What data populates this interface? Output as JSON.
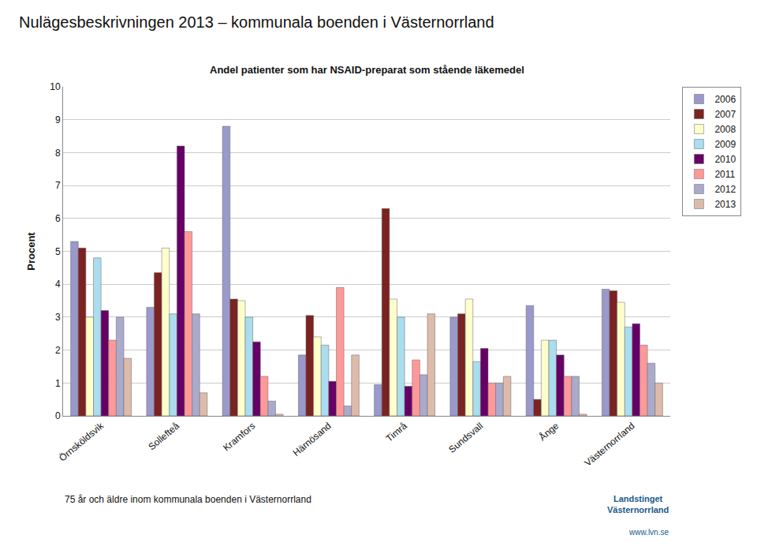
{
  "chart_data": {
    "type": "bar",
    "title": "Nulägesbeskrivningen 2013 – kommunala boenden i Västernorrland",
    "subtitle": "Andel patienter som har NSAID-preparat som stående läkemedel",
    "ylabel": "Procent",
    "annotations": [
      "75 år och äldre inom kommunala boenden i Västernorrland",
      "Landstinget\nVästernorrland",
      "www.lvn.se"
    ],
    "categories": [
      "Örnsköldsvik",
      "Sollefteå",
      "Kramfors",
      "Härnösand",
      "Timrå",
      "Sundsvall",
      "Ånge",
      "Västernorrland"
    ],
    "series": [
      {
        "name": "2006",
        "color": "#9999CC",
        "values": [
          5.3,
          3.3,
          8.8,
          1.85,
          0.95,
          3.0,
          3.35,
          3.85
        ]
      },
      {
        "name": "2007",
        "color": "#7B2222",
        "values": [
          5.1,
          4.35,
          3.55,
          3.05,
          6.3,
          3.1,
          0.5,
          3.8
        ]
      },
      {
        "name": "2008",
        "color": "#FFFFCC",
        "values": [
          3.0,
          5.1,
          3.5,
          2.4,
          3.55,
          3.55,
          2.3,
          3.45
        ]
      },
      {
        "name": "2009",
        "color": "#AADDEE",
        "values": [
          4.8,
          3.1,
          3.0,
          2.15,
          3.0,
          1.65,
          2.3,
          2.7
        ]
      },
      {
        "name": "2010",
        "color": "#660066",
        "values": [
          3.2,
          8.2,
          2.25,
          1.05,
          0.9,
          2.05,
          1.85,
          2.8
        ]
      },
      {
        "name": "2011",
        "color": "#FF9999",
        "values": [
          2.3,
          5.6,
          1.2,
          3.9,
          1.7,
          1.0,
          1.2,
          2.15
        ]
      },
      {
        "name": "2012",
        "color": "#AAAACC",
        "values": [
          3.0,
          3.1,
          0.45,
          0.3,
          1.25,
          1.0,
          1.2,
          1.6
        ]
      },
      {
        "name": "2013",
        "color": "#DDBBAA",
        "values": [
          1.75,
          0.7,
          0.05,
          1.85,
          3.1,
          1.2,
          0.05,
          1.0
        ]
      }
    ],
    "ylim": [
      0,
      10
    ],
    "yticks": [
      0,
      1,
      2,
      3,
      4,
      5,
      6,
      7,
      8,
      9,
      10
    ],
    "grid": true,
    "legend": "right"
  }
}
